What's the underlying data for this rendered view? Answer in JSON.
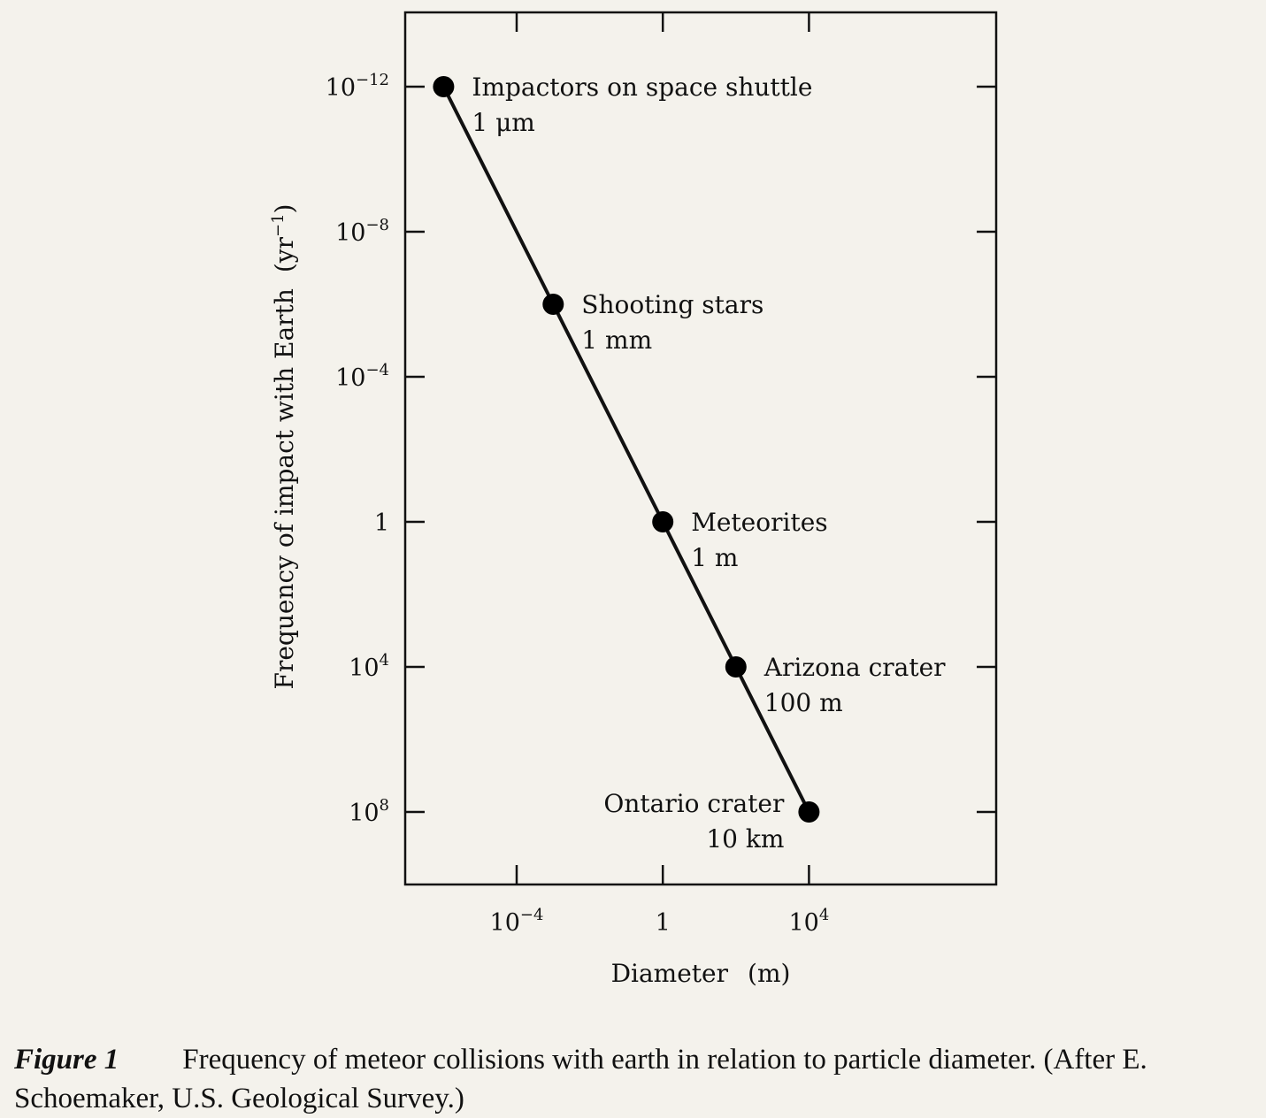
{
  "chart_data": {
    "type": "scatter",
    "xlabel": "Diameter",
    "xunit": "(m)",
    "ylabel": "Frequency of impact with Earth",
    "yunit": "(yr",
    "yunit_exp": "−1",
    "yunit_close": ")",
    "x_scale": "log",
    "y_scale": "log",
    "y_axis_direction": "reversed",
    "grid": false,
    "xlim_exponent": [
      -7,
      12
    ],
    "ylim_exponent": [
      -14,
      10
    ],
    "x_ticks": [
      {
        "base": "10",
        "exp": "−4",
        "value": -4
      },
      {
        "base": "1",
        "exp": "",
        "value": 0
      },
      {
        "base": "10",
        "exp": "4",
        "value": 4
      }
    ],
    "y_ticks": [
      {
        "base": "10",
        "exp": "−12",
        "value": -12
      },
      {
        "base": "10",
        "exp": "−8",
        "value": -8
      },
      {
        "base": "10",
        "exp": "−4",
        "value": -4
      },
      {
        "base": "1",
        "exp": "",
        "value": 0
      },
      {
        "base": "10",
        "exp": "4",
        "value": 4
      },
      {
        "base": "10",
        "exp": "8",
        "value": 8
      }
    ],
    "points": [
      {
        "label": "Impactors on space shuttle",
        "size": "1 μm",
        "x": -6,
        "y": -12,
        "label_side": "right"
      },
      {
        "label": "Shooting stars",
        "size": "1  mm",
        "x": -3,
        "y": -6,
        "label_side": "right"
      },
      {
        "label": "Meteorites",
        "size": "1  m",
        "x": 0,
        "y": 0,
        "label_side": "right"
      },
      {
        "label": "Arizona crater",
        "size": "100  m",
        "x": 2,
        "y": 4,
        "label_side": "right"
      },
      {
        "label": "Ontario crater",
        "size": "10  km",
        "x": 4,
        "y": 8,
        "label_side": "left"
      }
    ],
    "line_color": "#111111",
    "marker_color": "#000000"
  },
  "caption": {
    "label": "Figure 1",
    "text": "Frequency of meteor collisions with earth in relation to particle diameter. (After E. Schoemaker, U.S. Geological Survey.)"
  }
}
